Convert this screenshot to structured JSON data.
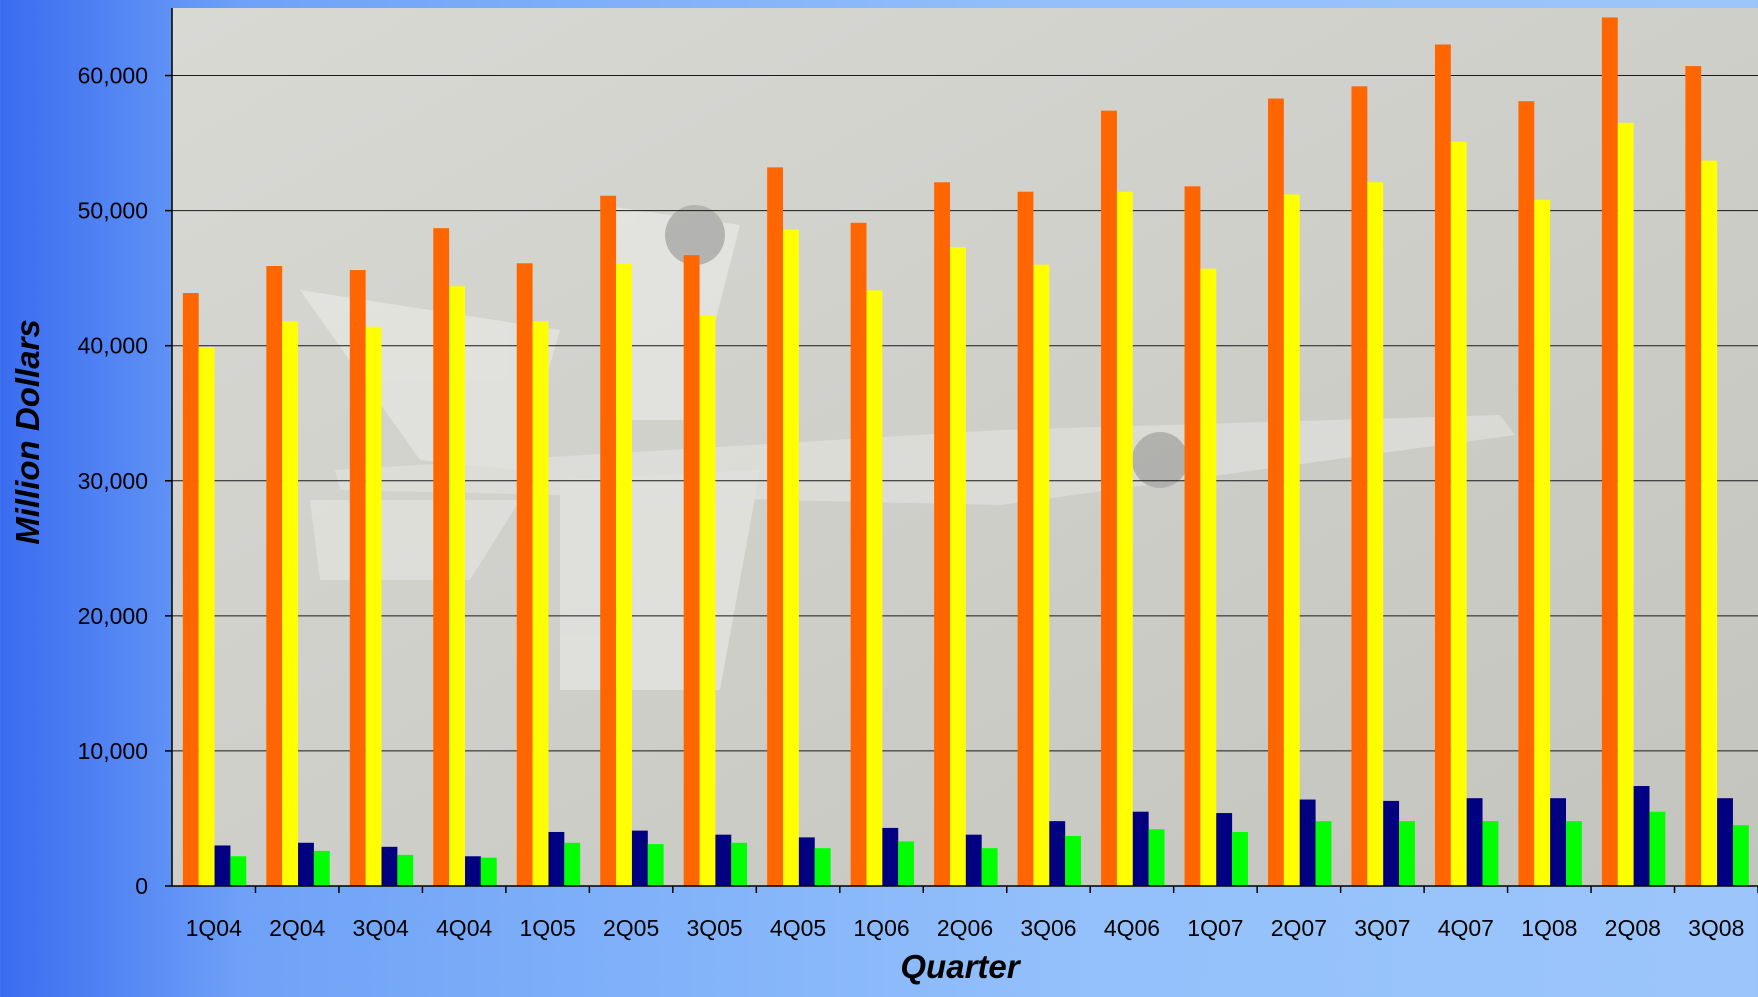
{
  "chart_data": {
    "type": "bar",
    "xlabel": "Quarter",
    "ylabel": "Million Dollars",
    "ylim": [
      0,
      65000
    ],
    "yticks": [
      0,
      10000,
      20000,
      30000,
      40000,
      50000,
      60000
    ],
    "ytick_labels": [
      "0",
      "10,000",
      "20,000",
      "30,000",
      "40,000",
      "50,000",
      "60,000"
    ],
    "grid": true,
    "legend": "none",
    "categories": [
      "1Q04",
      "2Q04",
      "3Q04",
      "4Q04",
      "1Q05",
      "2Q05",
      "3Q05",
      "4Q05",
      "1Q06",
      "2Q06",
      "3Q06",
      "4Q06",
      "1Q07",
      "2Q07",
      "3Q07",
      "4Q07",
      "1Q08",
      "2Q08",
      "3Q08"
    ],
    "series": [
      {
        "color": "#ff6600",
        "values": [
          43900,
          45900,
          45600,
          48700,
          46100,
          51100,
          46700,
          53200,
          49100,
          52100,
          51400,
          57400,
          51800,
          58300,
          59200,
          62300,
          58100,
          64300,
          60700
        ]
      },
      {
        "color": "#ffff00",
        "values": [
          39900,
          41800,
          41400,
          44400,
          41800,
          46100,
          42200,
          48600,
          44100,
          47300,
          46000,
          51400,
          45700,
          51200,
          52100,
          55100,
          50800,
          56500,
          53700
        ]
      },
      {
        "color": "#000080",
        "values": [
          3000,
          3200,
          2900,
          2200,
          4000,
          4100,
          3800,
          3600,
          4300,
          3800,
          4800,
          5500,
          5400,
          6400,
          6300,
          6500,
          6500,
          7400,
          6500
        ]
      },
      {
        "color": "#00ff00",
        "values": [
          2200,
          2600,
          2300,
          2100,
          3200,
          3100,
          3200,
          2800,
          3300,
          2800,
          3700,
          4200,
          4000,
          4800,
          4800,
          4800,
          4800,
          5500,
          4500
        ]
      }
    ]
  }
}
